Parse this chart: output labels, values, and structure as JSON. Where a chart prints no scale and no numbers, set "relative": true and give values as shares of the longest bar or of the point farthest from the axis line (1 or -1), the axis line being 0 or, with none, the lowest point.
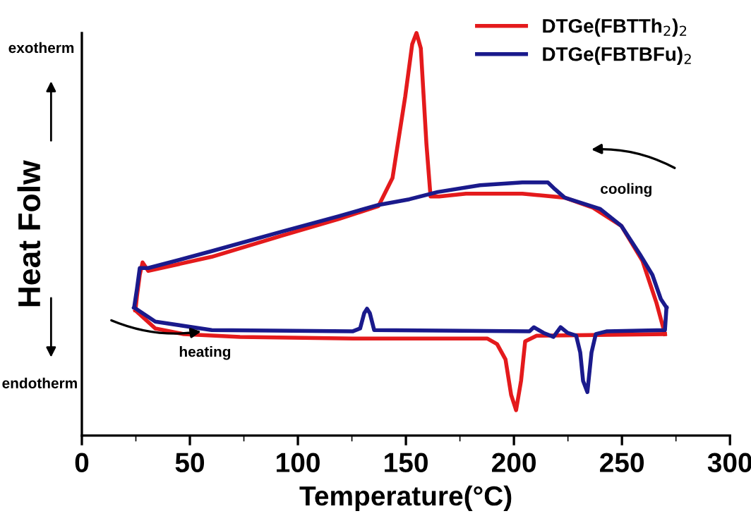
{
  "chart_data": {
    "type": "line",
    "relative": true,
    "xlabel": "Temperature(°C)",
    "ylabel": "Heat Folw",
    "xlim": [
      0,
      300
    ],
    "xticks": [
      0,
      50,
      100,
      150,
      200,
      250,
      300
    ],
    "grid": false,
    "legend": "top right",
    "marker": "none",
    "line_style": "solid",
    "annotations": [
      "exotherm",
      "endotherm",
      "cooling",
      "heating"
    ],
    "series": [
      {
        "name": "DTGe(FBTTh$_{2}$)$_{2}$",
        "color": "#e41a1c",
        "x": [
          24.8,
          34.0,
          47.1,
          73.2,
          125.5,
          187.6,
          192.2,
          196.1,
          198.7,
          201.0,
          203.3,
          205.2,
          210.5,
          269.9
        ],
        "values": [
          0.311,
          0.266,
          0.252,
          0.245,
          0.241,
          0.241,
          0.227,
          0.189,
          0.101,
          0.063,
          0.136,
          0.234,
          0.248,
          0.252
        ]
      },
      {
        "color": "#e41a1c",
        "x": [
          24.8,
          25.5,
          26.8,
          28.1,
          30.7,
          60.1,
          92.8,
          119.0,
          137.3,
          143.8,
          149.7,
          152.9,
          154.9,
          156.9,
          159.5,
          161.4,
          165.4,
          177.8,
          203.9,
          223.5,
          236.6,
          249.7,
          259.5,
          266.0,
          269.9
        ],
        "values": [
          0.311,
          0.346,
          0.399,
          0.43,
          0.409,
          0.444,
          0.497,
          0.538,
          0.57,
          0.64,
          0.843,
          0.972,
          1.0,
          0.962,
          0.724,
          0.594,
          0.594,
          0.601,
          0.601,
          0.591,
          0.566,
          0.521,
          0.434,
          0.329,
          0.252
        ]
      },
      {
        "name": "DTGe(FBTBFu)$_{2}$",
        "color": "#1a1a8c",
        "x": [
          24.2,
          34.0,
          60.1,
          125.5,
          128.8,
          130.7,
          132.0,
          133.3,
          135.3,
          207.2,
          209.2,
          213.7,
          218.3,
          221.6,
          224.8,
          228.8,
          230.7,
          232.0,
          234.0,
          235.9,
          237.9,
          243.1,
          269.9,
          270.6
        ],
        "values": [
          0.318,
          0.283,
          0.262,
          0.259,
          0.266,
          0.304,
          0.315,
          0.304,
          0.262,
          0.259,
          0.269,
          0.255,
          0.245,
          0.269,
          0.255,
          0.248,
          0.206,
          0.136,
          0.108,
          0.206,
          0.252,
          0.259,
          0.262,
          0.318
        ]
      },
      {
        "color": "#1a1a8c",
        "x": [
          24.2,
          25.5,
          26.8,
          30.7,
          60.1,
          92.8,
          119.0,
          137.3,
          151.6,
          164.7,
          184.3,
          203.9,
          215.7,
          219.0,
          223.5,
          239.9,
          249.7,
          258.2,
          264.1,
          268.0,
          270.6
        ],
        "values": [
          0.318,
          0.364,
          0.416,
          0.416,
          0.458,
          0.507,
          0.545,
          0.573,
          0.587,
          0.605,
          0.622,
          0.629,
          0.629,
          0.612,
          0.591,
          0.563,
          0.521,
          0.451,
          0.399,
          0.339,
          0.318
        ]
      }
    ]
  }
}
